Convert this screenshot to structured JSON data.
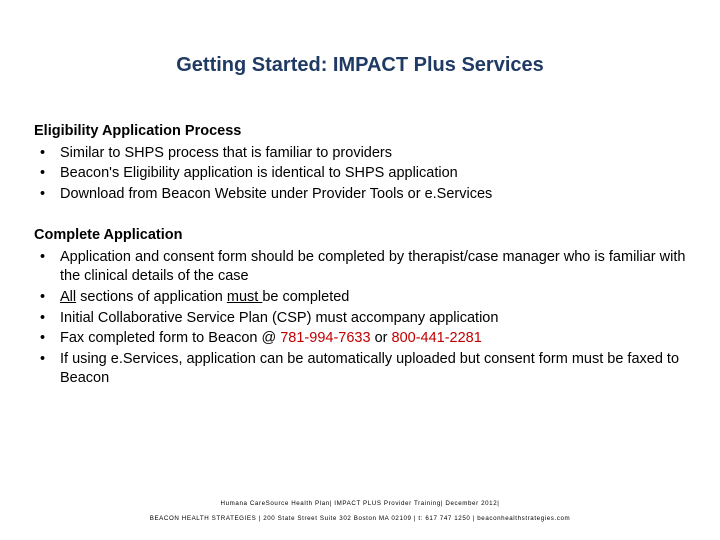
{
  "title": "Getting Started: IMPACT Plus Services",
  "section1": {
    "heading": "Eligibility Application Process",
    "items": [
      "Similar to SHPS process that is familiar to providers",
      "Beacon's Eligibility application is identical to SHPS application",
      "Download from Beacon Website under Provider Tools or e.Services"
    ]
  },
  "section2": {
    "heading": "Complete Application",
    "items": {
      "i0": "Application and consent form should be completed by therapist/case manager who is familiar with the clinical details of the case",
      "i1_pre": "",
      "i1_all": "All",
      "i1_mid": " sections of application ",
      "i1_must": "must ",
      "i1_post": "be completed",
      "i2": "Initial Collaborative Service Plan (CSP) must accompany application",
      "i3_pre": "Fax completed form to Beacon @ ",
      "i3_fax1": "781-994-7633",
      "i3_or": " or ",
      "i3_fax2": "800-441-2281",
      "i4": "If using e.Services, application can be automatically uploaded but consent form must be faxed to Beacon"
    }
  },
  "footer": {
    "line1": "Humana CareSource Health Plan| IMPACT PLUS Provider Training| December 2012|",
    "line2": "BEACON HEALTH STRATEGIES | 200 State Street Suite 302  Boston  MA 02109 | t: 617 747 1250 | beaconhealthstrategies.com"
  },
  "colors": {
    "title": "#1f3a63",
    "body": "#000000",
    "accent_red": "#c00000",
    "background": "#ffffff"
  }
}
